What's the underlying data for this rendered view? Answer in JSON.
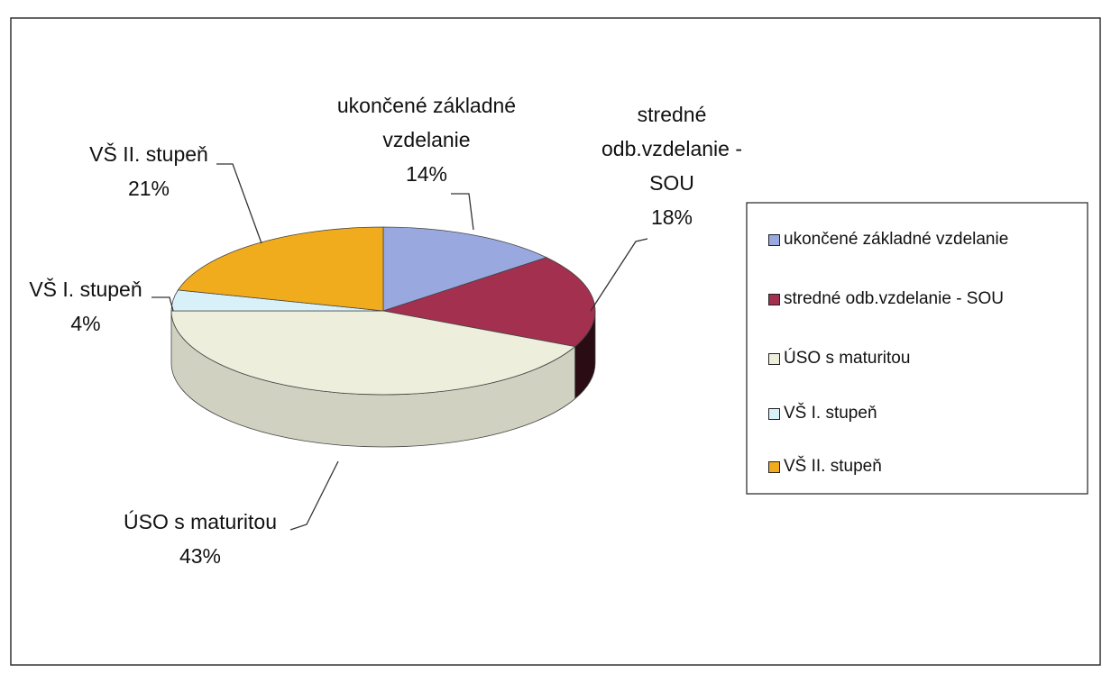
{
  "chart_data": {
    "type": "pie3d",
    "categories": [
      "ukončené základné vzdelanie",
      "stredné odb.vzdelanie - SOU",
      "ÚSO  s maturitou",
      "VŠ I. stupeň",
      "VŠ II. stupeň"
    ],
    "values": [
      14,
      18,
      43,
      4,
      21
    ],
    "value_labels": [
      "14%",
      "18%",
      "43%",
      "4%",
      "21%"
    ],
    "colors": [
      "#9aa8e0",
      "#a3304f",
      "#eeeedd",
      "#d8f0f8",
      "#f0ac1c"
    ],
    "legend": "right"
  }
}
